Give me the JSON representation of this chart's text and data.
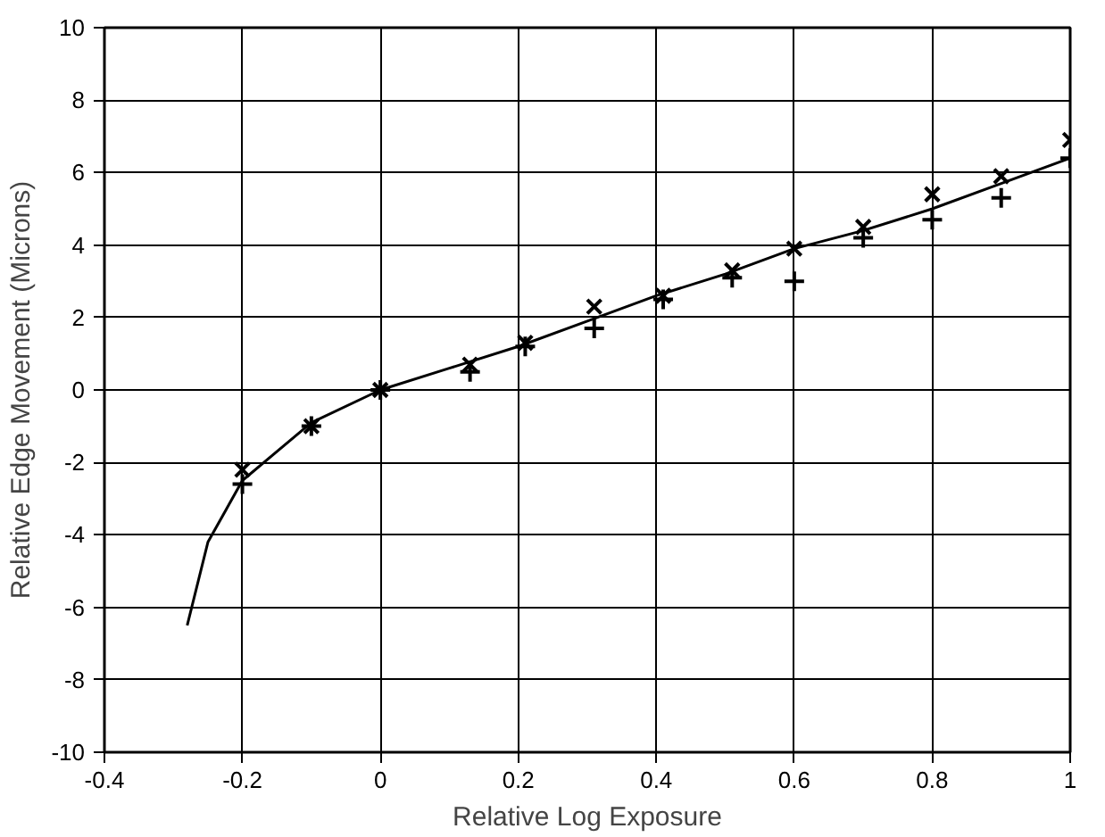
{
  "chart_data": {
    "type": "scatter",
    "xlabel": "Relative Log Exposure",
    "ylabel": "Relative Edge Movement (Microns)",
    "xlim": [
      -0.4,
      1
    ],
    "ylim": [
      -10,
      10
    ],
    "xticks": [
      -0.4,
      -0.2,
      0,
      0.2,
      0.4,
      0.6,
      0.8,
      1
    ],
    "yticks": [
      -10,
      -8,
      -6,
      -4,
      -2,
      0,
      2,
      4,
      6,
      8,
      10
    ],
    "grid": true,
    "series": [
      {
        "marker": "x",
        "color": "#000000",
        "x": [
          -0.2,
          -0.1,
          0,
          0.13,
          0.21,
          0.31,
          0.41,
          0.51,
          0.6,
          0.7,
          0.8,
          0.9,
          1.0
        ],
        "values": [
          -2.2,
          -1.0,
          0,
          0.7,
          1.3,
          2.3,
          2.6,
          3.3,
          3.9,
          4.5,
          5.4,
          5.9,
          6.9
        ]
      },
      {
        "marker": "cross",
        "color": "#000000",
        "x": [
          -0.2,
          -0.1,
          0,
          0.13,
          0.21,
          0.31,
          0.41,
          0.51,
          0.6,
          0.7,
          0.8,
          0.9,
          1.0
        ],
        "values": [
          -2.6,
          -1.0,
          0,
          0.5,
          1.2,
          1.7,
          2.5,
          3.1,
          3.0,
          4.2,
          4.7,
          5.3,
          6.4
        ]
      },
      {
        "type": "line",
        "marker": "none",
        "line_style": "solid",
        "color": "#000000",
        "x": [
          -0.28,
          -0.25,
          -0.2,
          -0.1,
          0,
          0.1,
          0.2,
          0.3,
          0.4,
          0.5,
          0.6,
          0.7,
          0.8,
          0.9,
          1.0
        ],
        "values": [
          -6.5,
          -4.2,
          -2.5,
          -0.9,
          0,
          0.6,
          1.2,
          1.9,
          2.6,
          3.2,
          3.9,
          4.4,
          5.0,
          5.7,
          6.4
        ]
      }
    ]
  }
}
